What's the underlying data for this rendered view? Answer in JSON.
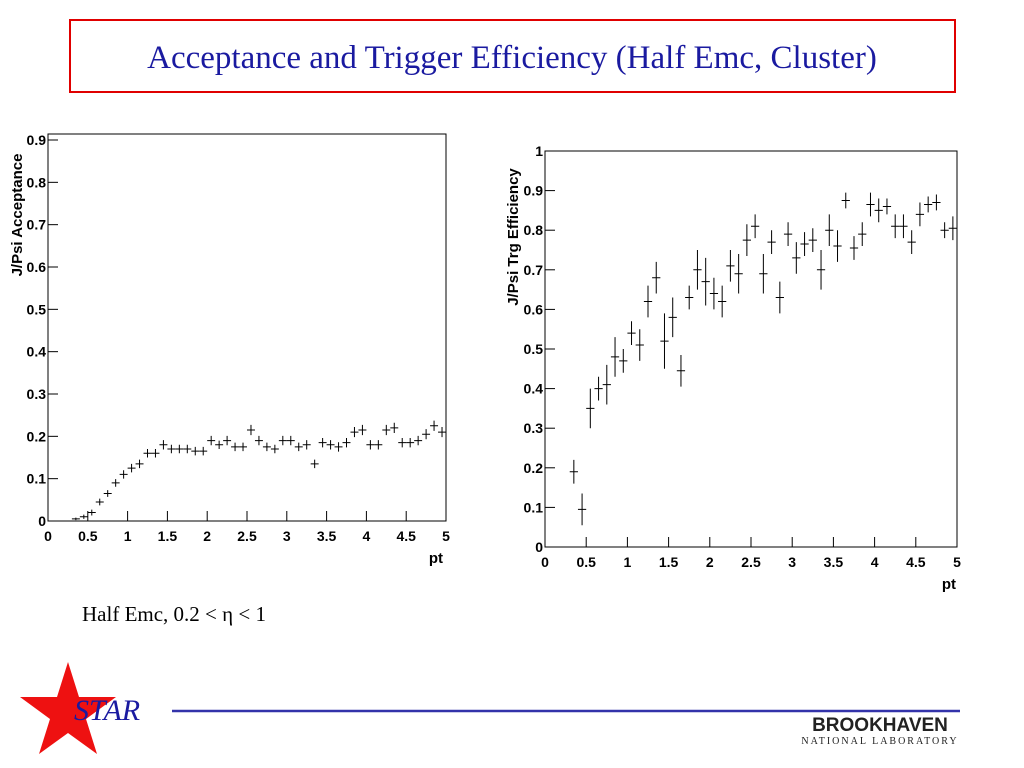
{
  "title": "Acceptance and Trigger Efficiency (Half Emc, Cluster)",
  "caption": "Half Emc, 0.2 < η < 1",
  "logo_star": "STAR",
  "logo_bnl": "BROOKHAVEN",
  "logo_bnl_sub": "NATIONAL LABORATORY",
  "chart_data": [
    {
      "type": "scatter",
      "xlabel": "pt",
      "ylabel": "J/Psi Acceptance",
      "color": "#000000",
      "xlim": [
        0,
        5
      ],
      "xticks": [
        0,
        0.5,
        1,
        1.5,
        2,
        2.5,
        3,
        3.5,
        4,
        4.5,
        5
      ],
      "ylim": [
        0,
        0.9
      ],
      "yticks": [
        0,
        0.1,
        0.2,
        0.3,
        0.4,
        0.5,
        0.6,
        0.7,
        0.8,
        0.9
      ],
      "x": [
        0.05,
        0.15,
        0.25,
        0.35,
        0.45,
        0.55,
        0.65,
        0.75,
        0.85,
        0.95,
        1.05,
        1.15,
        1.25,
        1.35,
        1.45,
        1.55,
        1.65,
        1.75,
        1.85,
        1.95,
        2.05,
        2.15,
        2.25,
        2.35,
        2.45,
        2.55,
        2.65,
        2.75,
        2.85,
        2.95,
        3.05,
        3.15,
        3.25,
        3.35,
        3.45,
        3.55,
        3.65,
        3.75,
        3.85,
        3.95,
        4.05,
        4.15,
        4.25,
        4.35,
        4.45,
        4.55,
        4.65,
        4.75,
        4.85,
        4.95
      ],
      "values": [
        0,
        0,
        0,
        0.005,
        0.01,
        0.02,
        0.045,
        0.065,
        0.09,
        0.11,
        0.125,
        0.135,
        0.16,
        0.16,
        0.18,
        0.17,
        0.17,
        0.17,
        0.165,
        0.165,
        0.19,
        0.18,
        0.19,
        0.175,
        0.175,
        0.215,
        0.19,
        0.175,
        0.17,
        0.19,
        0.19,
        0.175,
        0.18,
        0.135,
        0.185,
        0.18,
        0.175,
        0.185,
        0.21,
        0.215,
        0.18,
        0.18,
        0.215,
        0.22,
        0.185,
        0.185,
        0.19,
        0.205,
        0.225,
        0.21
      ],
      "errors": [
        0,
        0,
        0,
        0.003,
        0.005,
        0.007,
        0.008,
        0.008,
        0.009,
        0.01,
        0.01,
        0.01,
        0.01,
        0.01,
        0.011,
        0.01,
        0.01,
        0.01,
        0.01,
        0.01,
        0.011,
        0.01,
        0.011,
        0.01,
        0.01,
        0.012,
        0.011,
        0.01,
        0.01,
        0.011,
        0.011,
        0.01,
        0.011,
        0.01,
        0.011,
        0.011,
        0.011,
        0.011,
        0.012,
        0.012,
        0.011,
        0.011,
        0.012,
        0.012,
        0.011,
        0.011,
        0.011,
        0.012,
        0.012,
        0.012
      ]
    },
    {
      "type": "scatter",
      "xlabel": "pt",
      "ylabel": "J/Psi Trg Efficiency",
      "color": "#000000",
      "xlim": [
        0,
        5
      ],
      "xticks": [
        0,
        0.5,
        1,
        1.5,
        2,
        2.5,
        3,
        3.5,
        4,
        4.5,
        5
      ],
      "ylim": [
        0,
        1
      ],
      "yticks": [
        0,
        0.1,
        0.2,
        0.3,
        0.4,
        0.5,
        0.6,
        0.7,
        0.8,
        0.9,
        1
      ],
      "x": [
        0.05,
        0.15,
        0.25,
        0.35,
        0.45,
        0.55,
        0.65,
        0.75,
        0.85,
        0.95,
        1.05,
        1.15,
        1.25,
        1.35,
        1.45,
        1.55,
        1.65,
        1.75,
        1.85,
        1.95,
        2.05,
        2.15,
        2.25,
        2.35,
        2.45,
        2.55,
        2.65,
        2.75,
        2.85,
        2.95,
        3.05,
        3.15,
        3.25,
        3.35,
        3.45,
        3.55,
        3.65,
        3.75,
        3.85,
        3.95,
        4.05,
        4.15,
        4.25,
        4.35,
        4.45,
        4.55,
        4.65,
        4.75,
        4.85,
        4.95
      ],
      "values": [
        null,
        null,
        null,
        0.19,
        0.095,
        0.35,
        0.4,
        0.41,
        0.48,
        0.47,
        0.54,
        0.51,
        0.62,
        0.68,
        0.52,
        0.58,
        0.445,
        0.63,
        0.7,
        0.67,
        0.64,
        0.62,
        0.71,
        0.69,
        0.775,
        0.81,
        0.69,
        0.77,
        0.63,
        0.79,
        0.73,
        0.765,
        0.775,
        0.7,
        0.8,
        0.76,
        0.875,
        0.755,
        0.79,
        0.865,
        0.85,
        0.86,
        0.81,
        0.81,
        0.77,
        0.84,
        0.865,
        0.87,
        0.8,
        0.805
      ],
      "errors": [
        null,
        null,
        null,
        0.03,
        0.04,
        0.05,
        0.03,
        0.05,
        0.05,
        0.03,
        0.03,
        0.04,
        0.04,
        0.04,
        0.07,
        0.05,
        0.04,
        0.03,
        0.05,
        0.06,
        0.04,
        0.04,
        0.04,
        0.05,
        0.04,
        0.03,
        0.05,
        0.03,
        0.04,
        0.03,
        0.04,
        0.03,
        0.03,
        0.05,
        0.04,
        0.04,
        0.02,
        0.03,
        0.03,
        0.03,
        0.03,
        0.02,
        0.03,
        0.03,
        0.03,
        0.03,
        0.02,
        0.02,
        0.02,
        0.03
      ]
    }
  ]
}
